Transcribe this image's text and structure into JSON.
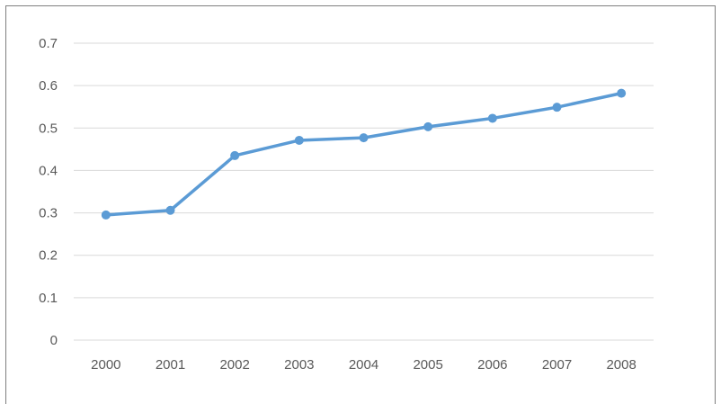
{
  "chart_data": {
    "type": "line",
    "title": "",
    "xlabel": "",
    "ylabel": "",
    "x": [
      "2000",
      "2001",
      "2002",
      "2003",
      "2004",
      "2005",
      "2006",
      "2007",
      "2008"
    ],
    "series": [
      {
        "values": [
          0.295,
          0.306,
          0.435,
          0.471,
          0.477,
          0.503,
          0.523,
          0.549,
          0.582
        ]
      }
    ],
    "ylim": [
      0,
      0.7
    ],
    "yticks": [
      "0",
      "0.1",
      "0.2",
      "0.3",
      "0.4",
      "0.5",
      "0.6",
      "0.7"
    ],
    "grid": "horizontal",
    "legend": "none",
    "colors": {
      "series": "#5b9bd5",
      "grid": "#d9d9d9",
      "axis_text": "#595959",
      "frame": "#7f7f7f"
    }
  }
}
